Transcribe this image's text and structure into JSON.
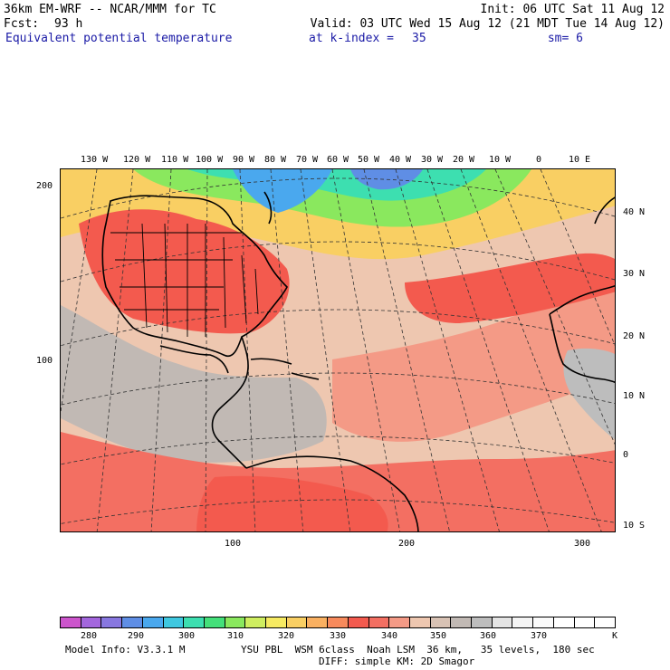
{
  "header": {
    "model": "36km EM-WRF -- NCAR/MMM for TC",
    "init": "Init: 06 UTC Sat 11 Aug 12",
    "fcst_label": "Fcst:",
    "fcst_hours": "93 h",
    "valid": "Valid: 03 UTC Wed 15 Aug 12 (21 MDT Tue 14 Aug 12)",
    "field": "Equivalent potential temperature",
    "level": "at k-index =",
    "level_value": "35",
    "smoothing": "sm= 6"
  },
  "map": {
    "longitude_labels": [
      "130 W",
      "120 W",
      "110 W",
      "100 W",
      "90 W",
      "80 W",
      "70 W",
      "60 W",
      "50 W",
      "40 W",
      "30 W",
      "20 W",
      "10 W",
      "0",
      "10 E"
    ],
    "latitude_labels": [
      "40 N",
      "30 N",
      "20 N",
      "10 N",
      "0",
      "10 S"
    ],
    "grid_y_labels": [
      "200",
      "100"
    ],
    "grid_x_labels": [
      "100",
      "200",
      "300"
    ]
  },
  "colorbar": {
    "labels": [
      "280",
      "290",
      "300",
      "310",
      "320",
      "330",
      "340",
      "350",
      "360",
      "370"
    ],
    "unit": "K",
    "colors": [
      "#cc55cc",
      "#a366dd",
      "#8877e0",
      "#5f8ee5",
      "#4aa8ee",
      "#3fc8e0",
      "#3ddfb0",
      "#44e07a",
      "#8ae85e",
      "#cfee60",
      "#f6ea62",
      "#f9cf63",
      "#f9b061",
      "#f78a5c",
      "#f35a4e",
      "#f36f62",
      "#f49a86",
      "#eec7b0",
      "#d8c2b4",
      "#c1b9b4",
      "#bdbdbd",
      "#e4e4e4",
      "#f4f4f4",
      "#fafafa",
      "#ffffff",
      "#ffffff",
      "#ffffff"
    ]
  },
  "footer": {
    "model_info": "Model Info: V3.3.1 M",
    "physics": "YSU PBL  WSM 6class  Noah LSM  36 km,   35 levels,  180 sec",
    "diffusion": "DIFF: simple KM: 2D Smagor"
  }
}
